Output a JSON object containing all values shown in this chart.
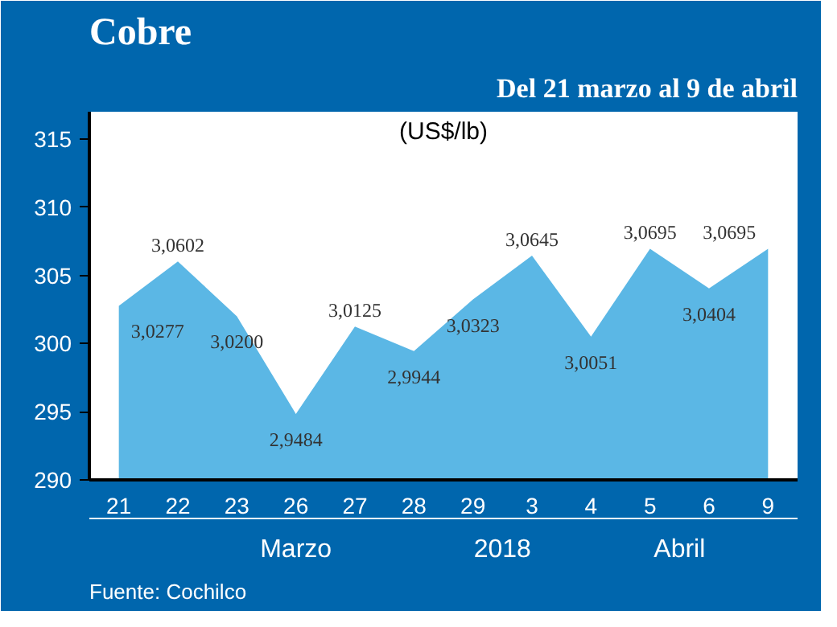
{
  "chart_data": {
    "type": "area",
    "title": "Cobre",
    "subtitle": "Del 21 marzo al 9 de abril",
    "ylabel": "(US$/lb)",
    "categories": [
      "21",
      "22",
      "23",
      "26",
      "27",
      "28",
      "29",
      "3",
      "4",
      "5",
      "6",
      "9"
    ],
    "series": [
      {
        "color": "#5bb7e5",
        "values": [
          302.77,
          306.02,
          302.0,
          294.84,
          301.25,
          299.44,
          303.23,
          306.45,
          300.51,
          306.95,
          304.04,
          306.95
        ],
        "value_labels": [
          "3,0277",
          "3,0602",
          "3,0200",
          "2,9484",
          "3,0125",
          "2,9944",
          "3,0323",
          "3,0645",
          "3,0051",
          "3,0695",
          "3,0404",
          "3,0695"
        ]
      }
    ],
    "ylim": [
      290,
      317
    ],
    "yticks": [
      290,
      295,
      300,
      305,
      310,
      315
    ],
    "grid": false,
    "annotations": [
      "Marzo",
      "2018",
      "Abril",
      "Fuente: Cochilco"
    ]
  }
}
